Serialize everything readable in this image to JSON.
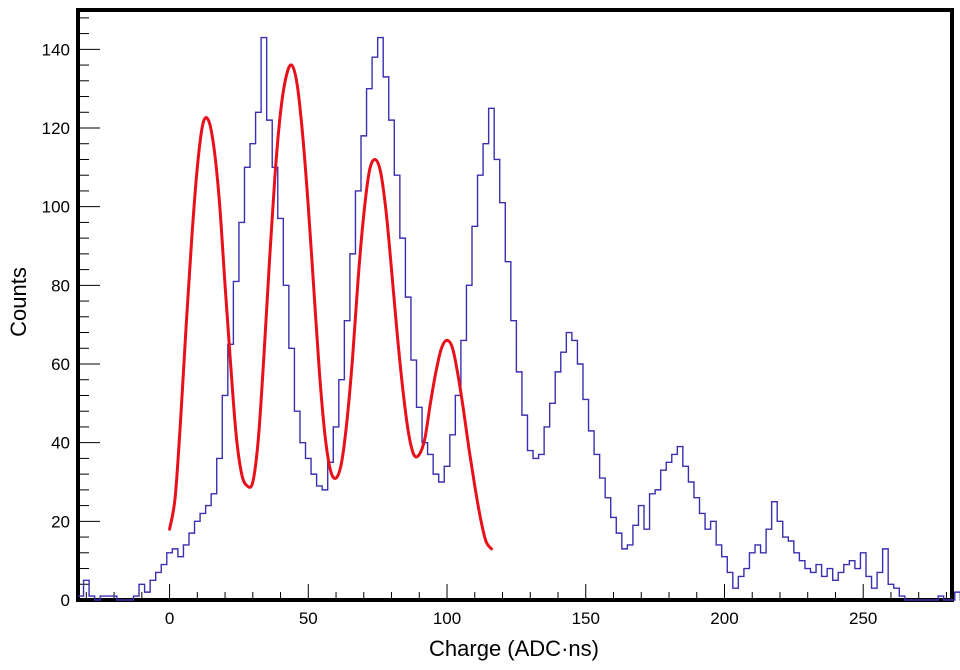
{
  "chart_data": {
    "type": "line",
    "title": "",
    "xlabel": "Charge (ADC·ns)",
    "ylabel": "Counts",
    "xlim": [
      -33,
      282
    ],
    "ylim": [
      0,
      150
    ],
    "x_ticks": [
      0,
      50,
      100,
      150,
      200,
      250
    ],
    "y_ticks": [
      0,
      20,
      40,
      60,
      80,
      100,
      120,
      140
    ],
    "x_tick_labels": [
      "0",
      "50",
      "100",
      "150",
      "200",
      "250"
    ],
    "y_tick_labels": [
      "0",
      "20",
      "40",
      "60",
      "80",
      "100",
      "120",
      "140"
    ],
    "grid": false,
    "legend": "none",
    "series": [
      {
        "kind": "histogram",
        "color": "#3a2fb0",
        "bin_width": 2,
        "bin_start": -33,
        "counts": [
          1,
          5,
          1,
          0,
          1,
          1,
          1,
          0,
          0,
          0,
          1,
          4,
          2,
          5,
          7,
          9,
          12,
          13,
          11,
          14,
          17,
          20,
          22,
          24,
          27,
          36,
          52,
          65,
          81,
          96,
          110,
          116,
          124,
          143,
          122,
          110,
          97,
          80,
          64,
          48,
          40,
          36,
          32,
          29,
          28,
          35,
          44,
          56,
          71,
          88,
          104,
          118,
          130,
          138,
          143,
          133,
          122,
          108,
          92,
          77,
          61,
          49,
          40,
          37,
          32,
          30,
          34,
          42,
          52,
          66,
          80,
          95,
          108,
          116,
          125,
          112,
          101,
          86,
          71,
          58,
          47,
          38,
          36,
          37,
          44,
          50,
          58,
          63,
          68,
          66,
          60,
          51,
          43,
          37,
          31,
          26,
          21,
          17,
          13,
          14,
          19,
          24,
          18,
          27,
          28,
          33,
          35,
          37,
          39,
          34,
          30,
          26,
          22,
          18,
          20,
          14,
          11,
          7,
          3,
          6,
          8,
          12,
          14,
          12,
          18,
          25,
          20,
          16,
          15,
          12,
          10,
          8,
          7,
          9,
          6,
          8,
          5,
          7,
          9,
          10,
          8,
          12,
          6,
          3,
          7,
          13,
          4,
          3,
          1,
          0,
          0,
          0,
          0,
          0,
          0,
          1,
          0,
          0,
          2,
          0,
          0
        ]
      },
      {
        "kind": "fit",
        "color": "#e8101a",
        "points": [
          [
            0,
            18
          ],
          [
            2,
            26
          ],
          [
            4,
            46
          ],
          [
            6,
            70
          ],
          [
            8,
            92
          ],
          [
            10,
            110
          ],
          [
            12,
            121
          ],
          [
            14,
            122
          ],
          [
            16,
            115
          ],
          [
            18,
            101
          ],
          [
            20,
            80
          ],
          [
            22,
            60
          ],
          [
            24,
            42
          ],
          [
            26,
            32
          ],
          [
            28,
            29
          ],
          [
            30,
            30
          ],
          [
            32,
            41
          ],
          [
            34,
            62
          ],
          [
            36,
            86
          ],
          [
            38,
            108
          ],
          [
            40,
            124
          ],
          [
            42,
            133
          ],
          [
            44,
            136
          ],
          [
            46,
            131
          ],
          [
            48,
            118
          ],
          [
            50,
            100
          ],
          [
            52,
            79
          ],
          [
            54,
            58
          ],
          [
            56,
            42
          ],
          [
            58,
            33
          ],
          [
            60,
            31
          ],
          [
            62,
            35
          ],
          [
            64,
            46
          ],
          [
            66,
            62
          ],
          [
            68,
            82
          ],
          [
            70,
            98
          ],
          [
            72,
            109
          ],
          [
            74,
            112
          ],
          [
            76,
            109
          ],
          [
            78,
            99
          ],
          [
            80,
            84
          ],
          [
            82,
            68
          ],
          [
            84,
            54
          ],
          [
            86,
            43
          ],
          [
            88,
            37
          ],
          [
            90,
            37
          ],
          [
            92,
            41
          ],
          [
            94,
            50
          ],
          [
            96,
            58
          ],
          [
            98,
            64
          ],
          [
            100,
            66
          ],
          [
            102,
            64
          ],
          [
            104,
            57
          ],
          [
            106,
            48
          ],
          [
            108,
            38
          ],
          [
            110,
            29
          ],
          [
            112,
            21
          ],
          [
            114,
            15
          ],
          [
            116,
            13
          ]
        ]
      }
    ]
  }
}
